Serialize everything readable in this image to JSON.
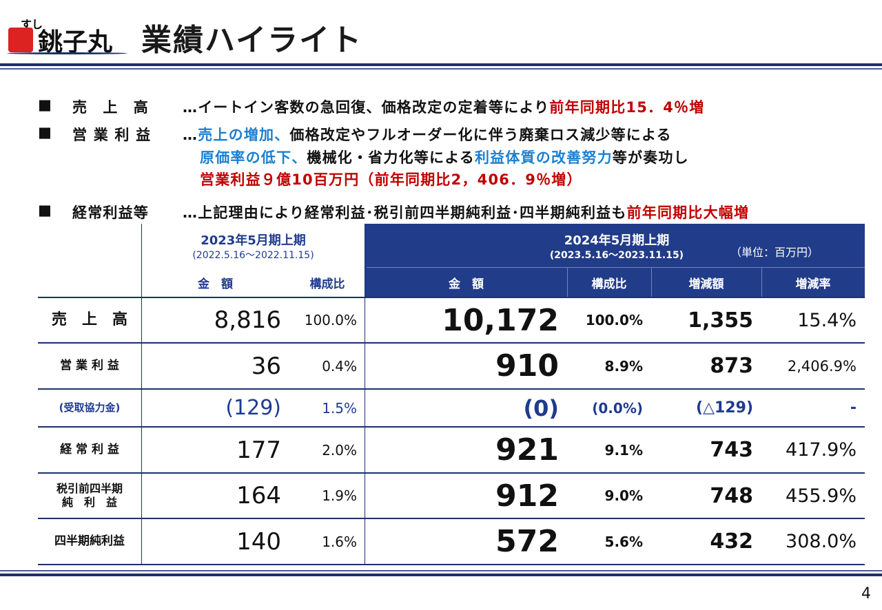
{
  "header": {
    "logo_top": "すし",
    "logo_main": "銚子丸",
    "title": "業績ハイライト"
  },
  "bullets": [
    {
      "marker": "■",
      "label": "売　上　高",
      "lines": [
        [
          {
            "text": "…イートイン客数の急回復、価格改定の定着等により",
            "color": "black"
          },
          {
            "text": "前年同期比15．4％増",
            "color": "red"
          }
        ]
      ]
    },
    {
      "marker": "■",
      "label": "営 業 利 益",
      "lines": [
        [
          {
            "text": "…",
            "color": "black"
          },
          {
            "text": "売上の増加、",
            "color": "blue"
          },
          {
            "text": "価格改定やフルオーダー化に伴う廃棄ロス減少等による",
            "color": "black"
          }
        ],
        [
          {
            "text": "原価率の低下、",
            "color": "blue"
          },
          {
            "text": "機械化・省力化等による",
            "color": "black"
          },
          {
            "text": "利益体質の改善努力",
            "color": "blue"
          },
          {
            "text": "等が奏功し",
            "color": "black"
          }
        ],
        [
          {
            "text": "営業利益９億10百万円（前年同期比2，406．9％増）",
            "color": "red"
          }
        ]
      ]
    },
    {
      "marker": "■",
      "label": "経常利益等",
      "lines": [
        [
          {
            "text": "…上記理由により経常利益･税引前四半期純利益･四半期純利益も",
            "color": "black"
          },
          {
            "text": "前年同期比大幅増",
            "color": "red"
          }
        ]
      ]
    }
  ],
  "table": {
    "prev_period": "2023年5月期上期",
    "prev_range": "(2022.5.16～2022.11.15)",
    "cur_period": "2024年5月期上期",
    "cur_range": "(2023.5.16～2023.11.15)",
    "unit": "（単位：百万円）",
    "columns": [
      "金　額",
      "構成比",
      "金　額",
      "構成比",
      "増減額",
      "増減率"
    ],
    "rows": [
      {
        "label": "売　上　高",
        "cells": [
          "8,816",
          "100.0%",
          "10,172",
          "100.0%",
          "1,355",
          "15.4%"
        ]
      },
      {
        "label": "営 業 利 益",
        "cells": [
          "36",
          "0.4%",
          "910",
          "8.9%",
          "873",
          "2,406.9%"
        ]
      },
      {
        "label": "(受取協力金)",
        "cells": [
          "(129)",
          "1.5%",
          "(0)",
          "(0.0%)",
          "(△129)",
          "-"
        ]
      },
      {
        "label": "経 常 利 益",
        "cells": [
          "177",
          "2.0%",
          "921",
          "9.1%",
          "743",
          "417.9%"
        ]
      },
      {
        "label": "税引前四半期\n純　利　益",
        "cells": [
          "164",
          "1.9%",
          "912",
          "9.0%",
          "748",
          "455.9%"
        ]
      },
      {
        "label": "四半期純利益",
        "cells": [
          "140",
          "1.6%",
          "572",
          "5.6%",
          "432",
          "308.0%"
        ]
      }
    ]
  },
  "page_number": "4"
}
